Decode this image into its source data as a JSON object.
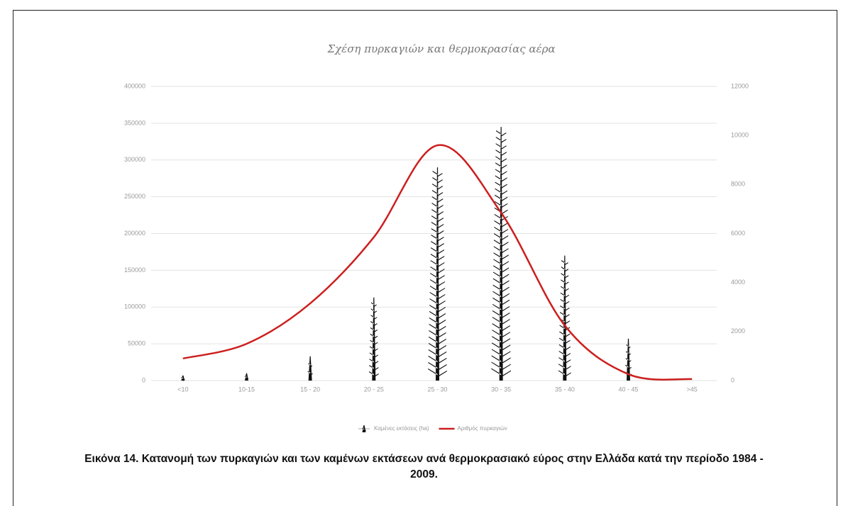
{
  "chart_data": {
    "type": "combo",
    "title": "Σχέση πυρκαγιών και θερμοκρασίας αέρα",
    "categories": [
      "<10",
      "10-15",
      "15 - 20",
      "20 - 25",
      "25 - 30",
      "30 - 35",
      "35 - 40",
      "40 - 45",
      ">45"
    ],
    "series": [
      {
        "name": "Καμένες εκτάσεις (ha)",
        "type": "bar",
        "color": "#111111",
        "values": [
          7000,
          10000,
          33000,
          113000,
          290000,
          345000,
          170000,
          57000,
          0
        ]
      },
      {
        "name": "Αριθμός πυρκαγιών",
        "type": "line",
        "axis": "y2",
        "color": "#cc1f1f",
        "values": [
          900,
          1500,
          3150,
          5850,
          9600,
          6850,
          2250,
          260,
          60
        ]
      }
    ],
    "ylim": [
      0,
      400000
    ],
    "yticks": [
      0,
      50000,
      100000,
      150000,
      200000,
      250000,
      300000,
      350000,
      400000
    ],
    "y2lim": [
      0,
      12000
    ],
    "y2ticks": [
      0,
      2000,
      4000,
      6000,
      8000,
      10000,
      12000
    ],
    "grid": true,
    "legend": "bottom"
  },
  "caption": "Εικόνα 14. Κατανομή των πυρκαγιών και των καμένων εκτάσεων ανά θερμοκρασιακό εύρος στην Ελλάδα κατά την περίοδο 1984 - 2009."
}
